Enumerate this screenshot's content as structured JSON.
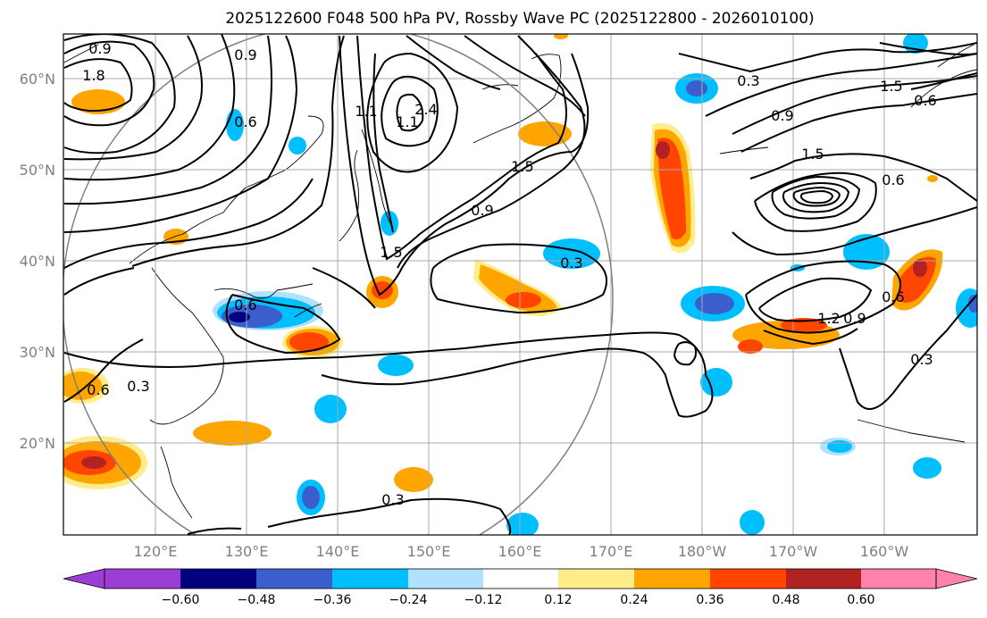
{
  "title": "2025122600 F048 500 hPa PV, Rossby Wave PC (2025122800 - 2026010100)",
  "lat_labels": [
    "60°N",
    "50°N",
    "40°N",
    "30°N",
    "20°N"
  ],
  "lon_labels": [
    "120°E",
    "130°E",
    "140°E",
    "150°E",
    "160°E",
    "170°E",
    "180°W",
    "170°W",
    "160°W"
  ],
  "colorbar": {
    "ticks": [
      "−0.60",
      "−0.48",
      "−0.36",
      "−0.24",
      "−0.12",
      "0.12",
      "0.24",
      "0.36",
      "0.48",
      "0.60"
    ],
    "colors": [
      "#9c3ed6",
      "#000080",
      "#3a5fcd",
      "#00bfff",
      "#b0e2ff",
      "#ffffff",
      "#ffec8b",
      "#ffa500",
      "#ff4500",
      "#b22222",
      "#ff82ab"
    ]
  },
  "contour_labels": [
    "0.9",
    "1.8",
    "0.6",
    "0.9",
    "1.1",
    "2.4",
    "1.1",
    "1.5",
    "0.9",
    "1.5",
    "0.3",
    "0.6",
    "0.3",
    "0.6",
    "0.3",
    "0.3",
    "0.9",
    "1.5",
    "1.5",
    "0.6",
    "0.6",
    "0.6",
    "1.2",
    "0.9",
    "0.3"
  ]
}
